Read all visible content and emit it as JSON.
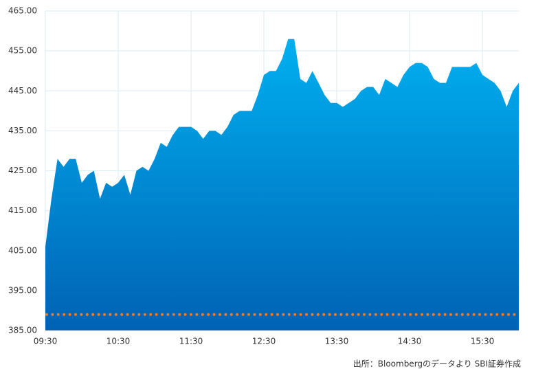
{
  "chart_data": {
    "type": "area",
    "x": [
      570,
      575,
      580,
      585,
      590,
      595,
      600,
      605,
      610,
      615,
      620,
      625,
      630,
      635,
      640,
      645,
      650,
      655,
      660,
      665,
      670,
      675,
      680,
      685,
      690,
      695,
      700,
      705,
      710,
      715,
      720,
      725,
      730,
      735,
      740,
      745,
      750,
      755,
      760,
      765,
      770,
      775,
      780,
      785,
      790,
      795,
      800,
      805,
      810,
      815,
      820,
      825,
      830,
      835,
      840,
      845,
      850,
      855,
      860,
      865,
      870,
      875,
      880,
      885,
      890,
      895,
      900,
      905,
      910,
      915,
      920,
      925,
      930,
      935,
      940,
      945,
      950,
      955,
      960
    ],
    "values": [
      406,
      418,
      428,
      426,
      428,
      428,
      422,
      424,
      425,
      418,
      422,
      421,
      422,
      424,
      419,
      425,
      426,
      425,
      428,
      432,
      431,
      434,
      436,
      436,
      436,
      435,
      433,
      435,
      435,
      434,
      436,
      439,
      440,
      440,
      440,
      444,
      449,
      450,
      450,
      453,
      458,
      458,
      448,
      447,
      450,
      447,
      444,
      442,
      442,
      441,
      442,
      443,
      445,
      446,
      446,
      444,
      448,
      447,
      446,
      449,
      451,
      452,
      452,
      451,
      448,
      447,
      447,
      451,
      451,
      451,
      451,
      452,
      449,
      448,
      447,
      445,
      441,
      445,
      447
    ],
    "color_top": "#00b0f0",
    "color_bottom": "#0062b4",
    "xlim": [
      570,
      960
    ],
    "ylim": [
      385,
      465
    ],
    "xticks": [
      {
        "value": 570,
        "label": "09:30"
      },
      {
        "value": 630,
        "label": "10:30"
      },
      {
        "value": 690,
        "label": "11:30"
      },
      {
        "value": 750,
        "label": "12:30"
      },
      {
        "value": 810,
        "label": "13:30"
      },
      {
        "value": 870,
        "label": "14:30"
      },
      {
        "value": 930,
        "label": "15:30"
      }
    ],
    "yticks": [
      {
        "value": 385,
        "label": "385.00"
      },
      {
        "value": 395,
        "label": "395.00"
      },
      {
        "value": 405,
        "label": "405.00"
      },
      {
        "value": 415,
        "label": "415.00"
      },
      {
        "value": 425,
        "label": "425.00"
      },
      {
        "value": 435,
        "label": "435.00"
      },
      {
        "value": 445,
        "label": "445.00"
      },
      {
        "value": 455,
        "label": "455.00"
      },
      {
        "value": 465,
        "label": "465.00"
      }
    ],
    "grid": true,
    "reference_line": {
      "value": 389,
      "color": "#f07c28"
    },
    "source": "出所：Bloombergのデータより SBI証券作成"
  }
}
